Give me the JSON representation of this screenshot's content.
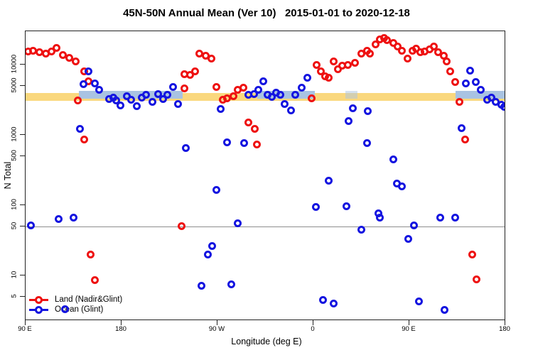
{
  "chart_data": {
    "type": "scatter",
    "title": "45N-50N Annual Mean (Ver 10)   2015-01-01 to 2020-12-18",
    "xlabel": "Longitude (deg E)",
    "ylabel": "N Total",
    "y_scale": "log10",
    "x_unit_note": "longitude axis unwrapped: 90E -> 180 -> 90W -> 0 -> 90E -> 180 (values 90..540)",
    "x_axis_ticks": [
      {
        "lon": 90,
        "label": "90 E"
      },
      {
        "lon": 180,
        "label": "180"
      },
      {
        "lon": 270,
        "label": "90 W"
      },
      {
        "lon": 360,
        "label": "0"
      },
      {
        "lon": 450,
        "label": "90 E"
      },
      {
        "lon": 540,
        "label": "180"
      }
    ],
    "y_axis_ticks": [
      {
        "value": 10000,
        "label": "10000"
      },
      {
        "value": 5000,
        "label": "5000"
      },
      {
        "value": 1000,
        "label": "1000"
      },
      {
        "value": 500,
        "label": "500"
      },
      {
        "value": 100,
        "label": "100"
      },
      {
        "value": 50,
        "label": "50"
      },
      {
        "value": 10,
        "label": "10"
      },
      {
        "value": 5,
        "label": "5"
      }
    ],
    "reference_line": {
      "y_value": 50,
      "color": "#8f8f8f"
    },
    "bands": {
      "yellow": {
        "color": "#FAD87E",
        "from_lon": 90,
        "to_lon": 540,
        "n_top": 3930,
        "n_bottom": 3050
      },
      "blue_color": "#A9C3E2",
      "blue_n_top": 4230,
      "blue_n_bottom": 3270,
      "blue_segments": [
        {
          "from_lon": 140,
          "to_lon": 237,
          "opacity": 1
        },
        {
          "from_lon": 307,
          "to_lon": 361,
          "opacity": 1
        },
        {
          "from_lon": 390,
          "to_lon": 401,
          "opacity": 0.5
        },
        {
          "from_lon": 493,
          "to_lon": 540,
          "opacity": 1
        }
      ]
    },
    "series": [
      {
        "name": "Land (Nadir&Glint)",
        "color": "#EE1111",
        "points": [
          [
            92,
            15200
          ],
          [
            97,
            15900
          ],
          [
            103,
            14900
          ],
          [
            109,
            14200
          ],
          [
            114,
            15200
          ],
          [
            119,
            17100
          ],
          [
            125,
            13800
          ],
          [
            131,
            12600
          ],
          [
            137,
            11200
          ],
          [
            145,
            7930
          ],
          [
            149,
            5730
          ],
          [
            139,
            3060
          ],
          [
            145,
            869
          ],
          [
            151,
            20
          ],
          [
            155,
            8.5
          ],
          [
            236,
            50
          ],
          [
            239,
            7390
          ],
          [
            239,
            4540
          ],
          [
            244,
            7220
          ],
          [
            249,
            7930
          ],
          [
            253,
            14200
          ],
          [
            259,
            13300
          ],
          [
            264,
            12300
          ],
          [
            269,
            4860
          ],
          [
            275,
            3130
          ],
          [
            279,
            3350
          ],
          [
            285,
            3590
          ],
          [
            289,
            4330
          ],
          [
            294,
            4750
          ],
          [
            299,
            1490
          ],
          [
            305,
            1230
          ],
          [
            307,
            739
          ],
          [
            358,
            3350
          ],
          [
            363,
            10000
          ],
          [
            367,
            8110
          ],
          [
            371,
            6890
          ],
          [
            374,
            6430
          ],
          [
            379,
            11200
          ],
          [
            383,
            8690
          ],
          [
            387,
            9770
          ],
          [
            392,
            10000
          ],
          [
            399,
            10500
          ],
          [
            405,
            14200
          ],
          [
            410,
            15600
          ],
          [
            413,
            14500
          ],
          [
            418,
            19200
          ],
          [
            422,
            22600
          ],
          [
            426,
            23700
          ],
          [
            429,
            22100
          ],
          [
            435,
            20100
          ],
          [
            439,
            18300
          ],
          [
            443,
            15600
          ],
          [
            448,
            12300
          ],
          [
            453,
            15600
          ],
          [
            456,
            16700
          ],
          [
            460,
            14900
          ],
          [
            464,
            15200
          ],
          [
            469,
            16300
          ],
          [
            473,
            17900
          ],
          [
            477,
            14900
          ],
          [
            482,
            13300
          ],
          [
            485,
            11000
          ],
          [
            488,
            7930
          ],
          [
            493,
            5600
          ],
          [
            497,
            2980
          ],
          [
            502,
            869
          ],
          [
            509,
            20
          ],
          [
            513,
            8.7
          ]
        ]
      },
      {
        "name": "Ocean (Glint)",
        "color": "#1414E0",
        "points": [
          [
            95,
            51
          ],
          [
            121,
            64
          ],
          [
            127,
            3.3
          ],
          [
            135,
            66
          ],
          [
            141,
            1230
          ],
          [
            144,
            5320
          ],
          [
            149,
            8110
          ],
          [
            155,
            5450
          ],
          [
            159,
            4430
          ],
          [
            168,
            3200
          ],
          [
            172,
            3430
          ],
          [
            175,
            3060
          ],
          [
            179,
            2610
          ],
          [
            185,
            3590
          ],
          [
            189,
            3130
          ],
          [
            194,
            2550
          ],
          [
            199,
            3430
          ],
          [
            203,
            3680
          ],
          [
            209,
            2980
          ],
          [
            214,
            3850
          ],
          [
            219,
            3200
          ],
          [
            223,
            3760
          ],
          [
            228,
            4860
          ],
          [
            233,
            2720
          ],
          [
            240,
            656
          ],
          [
            255,
            7.1
          ],
          [
            261,
            20
          ],
          [
            265,
            26
          ],
          [
            269,
            163
          ],
          [
            273,
            2320
          ],
          [
            279,
            775
          ],
          [
            283,
            7.4
          ],
          [
            289,
            55
          ],
          [
            295,
            758
          ],
          [
            299,
            3760
          ],
          [
            304,
            3850
          ],
          [
            308,
            4430
          ],
          [
            313,
            5730
          ],
          [
            317,
            3680
          ],
          [
            321,
            3510
          ],
          [
            325,
            4030
          ],
          [
            329,
            3760
          ],
          [
            333,
            2780
          ],
          [
            339,
            2220
          ],
          [
            343,
            3680
          ],
          [
            349,
            4750
          ],
          [
            354,
            6570
          ],
          [
            362,
            94
          ],
          [
            369,
            4.5
          ],
          [
            374,
            224
          ],
          [
            379,
            4.0
          ],
          [
            391,
            96
          ],
          [
            393,
            1590
          ],
          [
            397,
            2380
          ],
          [
            405,
            45
          ],
          [
            410,
            758
          ],
          [
            411,
            2170
          ],
          [
            421,
            76
          ],
          [
            422,
            67
          ],
          [
            435,
            453
          ],
          [
            438,
            205
          ],
          [
            443,
            187
          ],
          [
            449,
            33
          ],
          [
            454,
            51
          ],
          [
            459,
            4.3
          ],
          [
            479,
            66
          ],
          [
            483,
            3.2
          ],
          [
            493,
            66
          ],
          [
            499,
            1260
          ],
          [
            503,
            5450
          ],
          [
            507,
            8300
          ],
          [
            512,
            5600
          ],
          [
            517,
            4430
          ],
          [
            523,
            3130
          ],
          [
            527,
            3430
          ],
          [
            531,
            2980
          ],
          [
            536,
            2670
          ],
          [
            539,
            2480
          ]
        ]
      }
    ],
    "legend_position": "bottom-left-inside"
  }
}
